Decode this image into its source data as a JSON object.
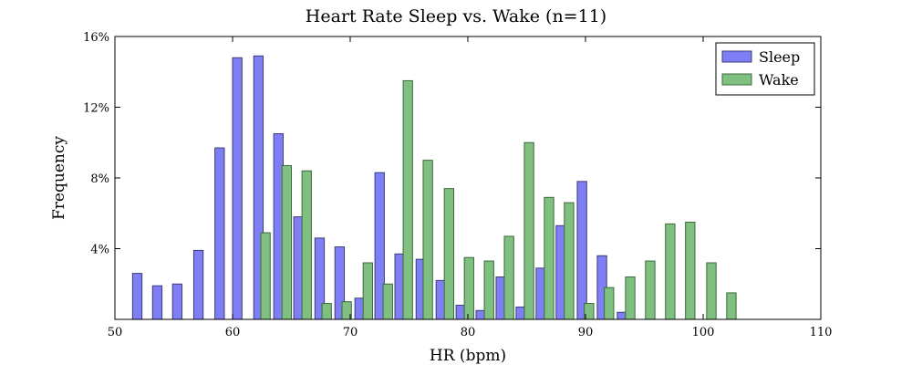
{
  "chart_data": {
    "type": "bar",
    "title": "Heart Rate Sleep vs. Wake (n=11)",
    "xlabel": "HR (bpm)",
    "ylabel": "Frequency",
    "xlim": [
      50,
      110
    ],
    "ylim": [
      0,
      16
    ],
    "xticks": [
      50,
      60,
      70,
      80,
      90,
      100,
      110
    ],
    "xtick_labels": [
      "50",
      "60",
      "70",
      "80",
      "90",
      "100",
      "110"
    ],
    "yticks": [
      4,
      8,
      12,
      16
    ],
    "ytick_labels": [
      "4%",
      "8%",
      "12%",
      "16%"
    ],
    "legend_position": "top-right",
    "grid": false,
    "series": [
      {
        "name": "Sleep",
        "color": "#7f7ff5",
        "edge": "#3c3c7a",
        "points": [
          {
            "x": 51.9,
            "y": 2.6
          },
          {
            "x": 53.6,
            "y": 1.9
          },
          {
            "x": 55.3,
            "y": 2.0
          },
          {
            "x": 57.1,
            "y": 3.9
          },
          {
            "x": 58.9,
            "y": 9.7
          },
          {
            "x": 60.4,
            "y": 14.8
          },
          {
            "x": 62.2,
            "y": 14.9
          },
          {
            "x": 63.9,
            "y": 10.5
          },
          {
            "x": 65.6,
            "y": 5.8
          },
          {
            "x": 67.4,
            "y": 4.6
          },
          {
            "x": 69.1,
            "y": 4.1
          },
          {
            "x": 70.8,
            "y": 1.2
          },
          {
            "x": 72.5,
            "y": 8.3
          },
          {
            "x": 74.2,
            "y": 3.7
          },
          {
            "x": 76.0,
            "y": 3.4
          },
          {
            "x": 77.7,
            "y": 2.2
          },
          {
            "x": 79.4,
            "y": 0.8
          },
          {
            "x": 81.1,
            "y": 0.5
          },
          {
            "x": 82.8,
            "y": 2.4
          },
          {
            "x": 84.5,
            "y": 0.7
          },
          {
            "x": 86.2,
            "y": 2.9
          },
          {
            "x": 87.9,
            "y": 5.3
          },
          {
            "x": 89.7,
            "y": 7.8
          },
          {
            "x": 91.4,
            "y": 3.6
          },
          {
            "x": 93.1,
            "y": 0.4
          }
        ]
      },
      {
        "name": "Wake",
        "color": "#7fbf7f",
        "edge": "#3c6a3c",
        "points": [
          {
            "x": 62.8,
            "y": 4.9
          },
          {
            "x": 64.6,
            "y": 8.7
          },
          {
            "x": 66.3,
            "y": 8.4
          },
          {
            "x": 68.0,
            "y": 0.9
          },
          {
            "x": 69.7,
            "y": 1.0
          },
          {
            "x": 71.5,
            "y": 3.2
          },
          {
            "x": 73.2,
            "y": 2.0
          },
          {
            "x": 74.9,
            "y": 13.5
          },
          {
            "x": 76.6,
            "y": 9.0
          },
          {
            "x": 78.4,
            "y": 7.4
          },
          {
            "x": 80.1,
            "y": 3.5
          },
          {
            "x": 81.8,
            "y": 3.3
          },
          {
            "x": 83.5,
            "y": 4.7
          },
          {
            "x": 85.2,
            "y": 10.0
          },
          {
            "x": 86.9,
            "y": 6.9
          },
          {
            "x": 88.6,
            "y": 6.6
          },
          {
            "x": 90.3,
            "y": 0.9
          },
          {
            "x": 92.0,
            "y": 1.8
          },
          {
            "x": 93.8,
            "y": 2.4
          },
          {
            "x": 95.5,
            "y": 3.3
          },
          {
            "x": 97.2,
            "y": 5.4
          },
          {
            "x": 98.9,
            "y": 5.5
          },
          {
            "x": 100.7,
            "y": 3.2
          },
          {
            "x": 102.4,
            "y": 1.5
          }
        ]
      }
    ]
  }
}
